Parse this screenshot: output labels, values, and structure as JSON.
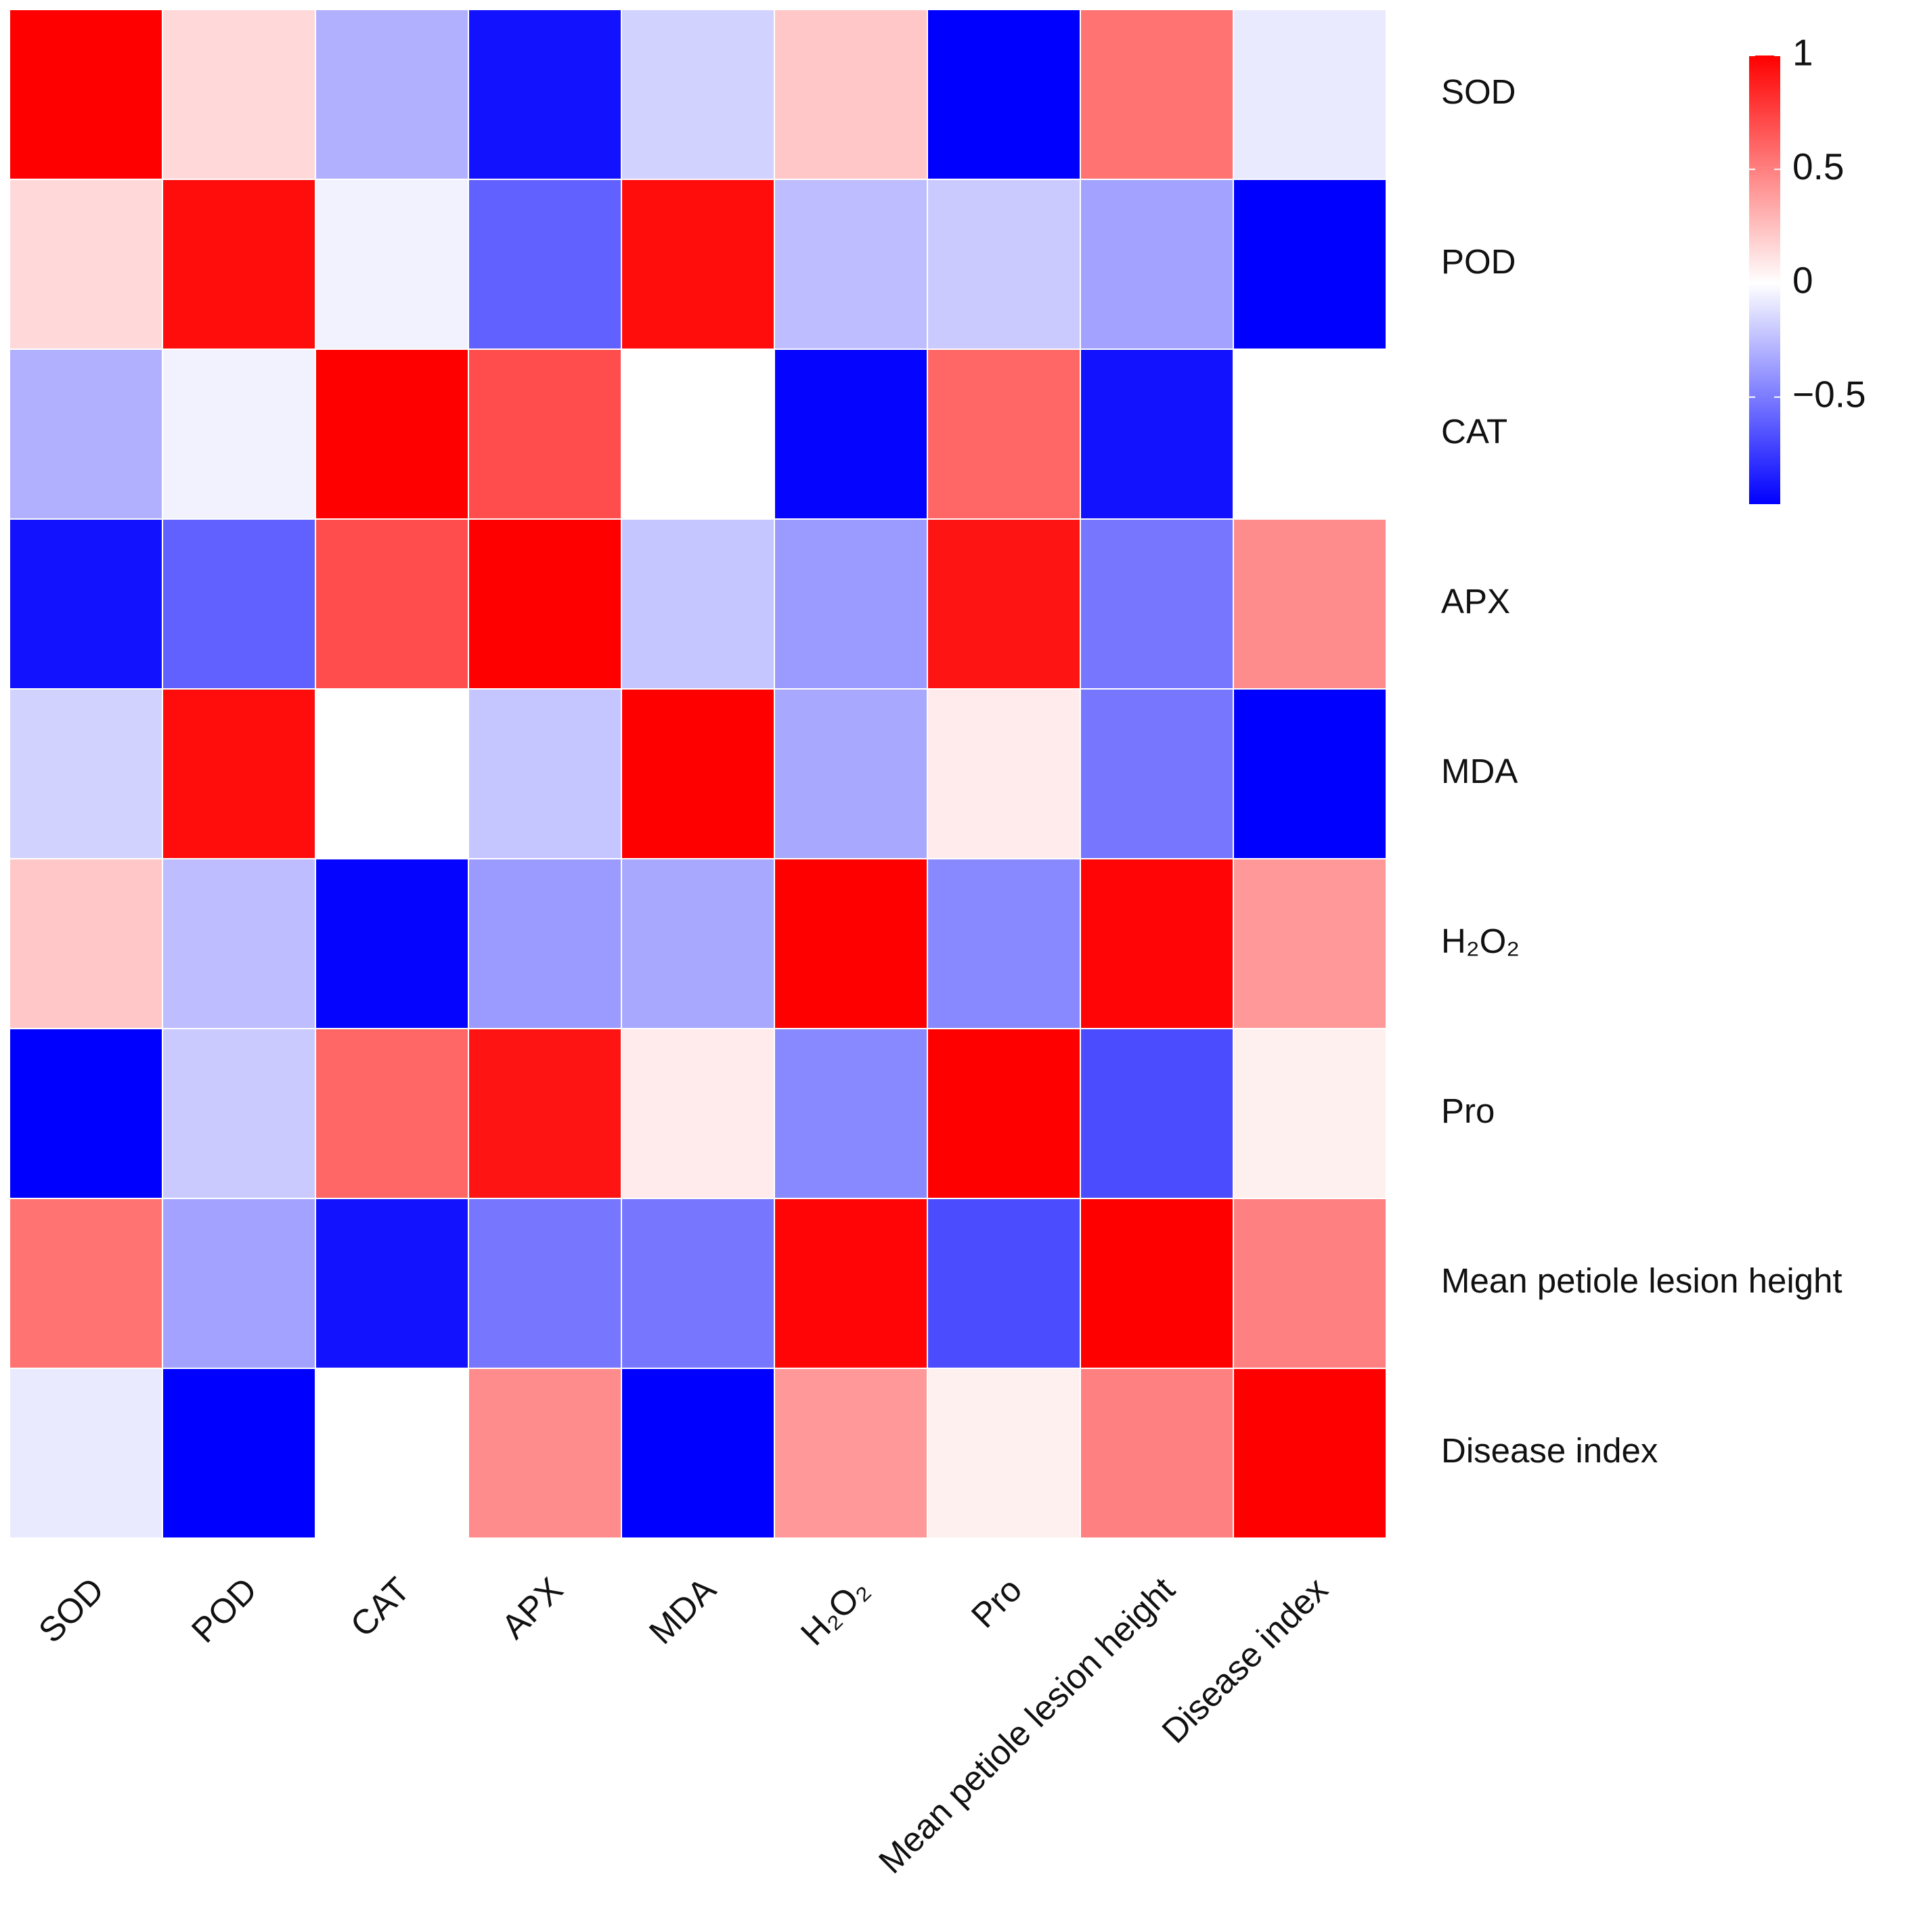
{
  "chart_data": {
    "type": "heatmap",
    "rows": [
      "SOD",
      "POD",
      "CAT",
      "APX",
      "MDA",
      "H₂O₂",
      "Pro",
      "Mean petiole lesion height",
      "Disease index"
    ],
    "columns": [
      "SOD",
      "POD",
      "CAT",
      "APX",
      "MDA",
      "H₂O₂",
      "Pro",
      "Mean petiole lesion height",
      "Disease index"
    ],
    "values": [
      [
        1,
        0.15,
        -0.3,
        -0.9,
        -0.17,
        0.22,
        -0.97,
        0.55,
        -0.08
      ],
      [
        0.15,
        0.95,
        -0.05,
        -0.6,
        0.95,
        -0.25,
        -0.2,
        -0.35,
        -0.97
      ],
      [
        -0.3,
        -0.05,
        1,
        0.7,
        0,
        -0.95,
        0.6,
        -0.9,
        0
      ],
      [
        -0.9,
        -0.6,
        0.7,
        1,
        -0.22,
        -0.38,
        0.92,
        -0.52,
        0.45
      ],
      [
        -0.17,
        0.95,
        0,
        -0.22,
        1,
        -0.33,
        0.08,
        -0.52,
        -0.97
      ],
      [
        0.22,
        -0.25,
        -0.95,
        -0.38,
        -0.33,
        1,
        -0.45,
        0.98,
        0.4
      ],
      [
        -0.97,
        -0.2,
        0.6,
        0.92,
        0.08,
        -0.45,
        1,
        -0.68,
        0.06
      ],
      [
        0.55,
        -0.35,
        -0.9,
        -0.52,
        -0.52,
        0.98,
        -0.68,
        1,
        0.5
      ],
      [
        -0.08,
        -0.97,
        0,
        0.45,
        -0.97,
        0.4,
        0.06,
        0.5,
        1
      ]
    ],
    "colorbar_lim": [
      -0.97,
      1
    ],
    "colorbar_ticks": [
      1,
      0.5,
      0,
      {
        "value": -0.5,
        "label": "−0.5"
      }
    ],
    "colors": {
      "low": "#0000ff",
      "mid": "#ffffff",
      "high": "#ff0000"
    }
  }
}
